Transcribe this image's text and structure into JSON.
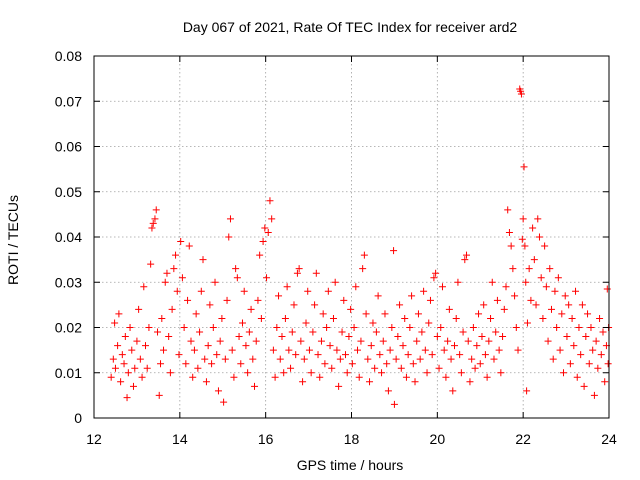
{
  "chart_data": {
    "type": "scatter",
    "title": "Day 067 of 2021, Rate Of TEC Index for receiver ard2",
    "xlabel": "GPS time / hours",
    "ylabel": "ROTI / TECUs",
    "xlim": [
      12,
      24
    ],
    "ylim": [
      0,
      0.08
    ],
    "x_ticks": [
      12,
      14,
      16,
      18,
      20,
      22,
      24
    ],
    "x_tick_labels": [
      "12",
      "14",
      "16",
      "18",
      "20",
      "22",
      "24"
    ],
    "y_ticks": [
      0,
      0.01,
      0.02,
      0.03,
      0.04,
      0.05,
      0.06,
      0.07,
      0.08
    ],
    "y_tick_labels": [
      "0",
      "0.01",
      "0.02",
      "0.03",
      "0.04",
      "0.05",
      "0.06",
      "0.07",
      "0.08"
    ],
    "grid": true,
    "marker": "+",
    "marker_color": "#ff0000",
    "series": [
      {
        "name": "ROTI",
        "points": [
          [
            12.4,
            0.009
          ],
          [
            12.45,
            0.013
          ],
          [
            12.48,
            0.021
          ],
          [
            12.5,
            0.011
          ],
          [
            12.55,
            0.016
          ],
          [
            12.58,
            0.023
          ],
          [
            12.62,
            0.008
          ],
          [
            12.66,
            0.014
          ],
          [
            12.7,
            0.012
          ],
          [
            12.73,
            0.018
          ],
          [
            12.77,
            0.0045
          ],
          [
            12.8,
            0.01
          ],
          [
            12.84,
            0.02
          ],
          [
            12.88,
            0.015
          ],
          [
            12.92,
            0.007
          ],
          [
            12.95,
            0.011
          ],
          [
            13.0,
            0.017
          ],
          [
            13.04,
            0.024
          ],
          [
            13.08,
            0.013
          ],
          [
            13.12,
            0.009
          ],
          [
            13.16,
            0.029
          ],
          [
            13.2,
            0.016
          ],
          [
            13.24,
            0.011
          ],
          [
            13.28,
            0.02
          ],
          [
            13.32,
            0.034
          ],
          [
            13.35,
            0.042
          ],
          [
            13.38,
            0.043
          ],
          [
            13.42,
            0.044
          ],
          [
            13.45,
            0.046
          ],
          [
            13.48,
            0.019
          ],
          [
            13.52,
            0.005
          ],
          [
            13.55,
            0.012
          ],
          [
            13.58,
            0.022
          ],
          [
            13.62,
            0.015
          ],
          [
            13.66,
            0.03
          ],
          [
            13.7,
            0.032
          ],
          [
            13.74,
            0.018
          ],
          [
            13.78,
            0.01
          ],
          [
            13.82,
            0.024
          ],
          [
            13.86,
            0.033
          ],
          [
            13.9,
            0.036
          ],
          [
            13.94,
            0.028
          ],
          [
            13.98,
            0.014
          ],
          [
            14.02,
            0.039
          ],
          [
            14.06,
            0.031
          ],
          [
            14.1,
            0.02
          ],
          [
            14.14,
            0.012
          ],
          [
            14.18,
            0.026
          ],
          [
            14.22,
            0.038
          ],
          [
            14.26,
            0.017
          ],
          [
            14.3,
            0.009
          ],
          [
            14.34,
            0.015
          ],
          [
            14.38,
            0.023
          ],
          [
            14.42,
            0.011
          ],
          [
            14.46,
            0.019
          ],
          [
            14.5,
            0.028
          ],
          [
            14.54,
            0.035
          ],
          [
            14.58,
            0.013
          ],
          [
            14.62,
            0.008
          ],
          [
            14.66,
            0.016
          ],
          [
            14.7,
            0.025
          ],
          [
            14.74,
            0.012
          ],
          [
            14.78,
            0.02
          ],
          [
            14.82,
            0.03
          ],
          [
            14.86,
            0.014
          ],
          [
            14.9,
            0.006
          ],
          [
            14.94,
            0.017
          ],
          [
            14.98,
            0.022
          ],
          [
            15.02,
            0.0035
          ],
          [
            15.06,
            0.013
          ],
          [
            15.1,
            0.026
          ],
          [
            15.14,
            0.04
          ],
          [
            15.18,
            0.044
          ],
          [
            15.22,
            0.015
          ],
          [
            15.26,
            0.009
          ],
          [
            15.3,
            0.033
          ],
          [
            15.34,
            0.031
          ],
          [
            15.38,
            0.018
          ],
          [
            15.42,
            0.012
          ],
          [
            15.46,
            0.021
          ],
          [
            15.5,
            0.028
          ],
          [
            15.54,
            0.016
          ],
          [
            15.58,
            0.01
          ],
          [
            15.62,
            0.019
          ],
          [
            15.66,
            0.024
          ],
          [
            15.7,
            0.013
          ],
          [
            15.74,
            0.007
          ],
          [
            15.78,
            0.017
          ],
          [
            15.82,
            0.026
          ],
          [
            15.86,
            0.036
          ],
          [
            15.9,
            0.022
          ],
          [
            15.94,
            0.039
          ],
          [
            15.98,
            0.042
          ],
          [
            16.02,
            0.031
          ],
          [
            16.06,
            0.041
          ],
          [
            16.1,
            0.048
          ],
          [
            16.14,
            0.044
          ],
          [
            16.18,
            0.015
          ],
          [
            16.22,
            0.009
          ],
          [
            16.26,
            0.02
          ],
          [
            16.3,
            0.027
          ],
          [
            16.34,
            0.013
          ],
          [
            16.38,
            0.018
          ],
          [
            16.42,
            0.01
          ],
          [
            16.46,
            0.022
          ],
          [
            16.5,
            0.029
          ],
          [
            16.54,
            0.015
          ],
          [
            16.58,
            0.011
          ],
          [
            16.62,
            0.019
          ],
          [
            16.66,
            0.025
          ],
          [
            16.7,
            0.014
          ],
          [
            16.74,
            0.032
          ],
          [
            16.78,
            0.033
          ],
          [
            16.82,
            0.017
          ],
          [
            16.86,
            0.008
          ],
          [
            16.9,
            0.013
          ],
          [
            16.94,
            0.021
          ],
          [
            16.98,
            0.028
          ],
          [
            17.02,
            0.015
          ],
          [
            17.06,
            0.01
          ],
          [
            17.1,
            0.019
          ],
          [
            17.14,
            0.025
          ],
          [
            17.18,
            0.032
          ],
          [
            17.22,
            0.014
          ],
          [
            17.26,
            0.009
          ],
          [
            17.3,
            0.017
          ],
          [
            17.34,
            0.023
          ],
          [
            17.38,
            0.012
          ],
          [
            17.42,
            0.02
          ],
          [
            17.46,
            0.028
          ],
          [
            17.5,
            0.016
          ],
          [
            17.54,
            0.011
          ],
          [
            17.58,
            0.022
          ],
          [
            17.62,
            0.03
          ],
          [
            17.66,
            0.015
          ],
          [
            17.7,
            0.007
          ],
          [
            17.74,
            0.013
          ],
          [
            17.78,
            0.019
          ],
          [
            17.82,
            0.026
          ],
          [
            17.86,
            0.014
          ],
          [
            17.9,
            0.01
          ],
          [
            17.94,
            0.018
          ],
          [
            17.98,
            0.024
          ],
          [
            18.02,
            0.012
          ],
          [
            18.06,
            0.02
          ],
          [
            18.1,
            0.029
          ],
          [
            18.14,
            0.015
          ],
          [
            18.18,
            0.009
          ],
          [
            18.22,
            0.017
          ],
          [
            18.26,
            0.033
          ],
          [
            18.3,
            0.036
          ],
          [
            18.34,
            0.023
          ],
          [
            18.38,
            0.013
          ],
          [
            18.42,
            0.008
          ],
          [
            18.46,
            0.016
          ],
          [
            18.5,
            0.021
          ],
          [
            18.54,
            0.011
          ],
          [
            18.58,
            0.019
          ],
          [
            18.62,
            0.027
          ],
          [
            18.66,
            0.014
          ],
          [
            18.7,
            0.01
          ],
          [
            18.74,
            0.017
          ],
          [
            18.78,
            0.023
          ],
          [
            18.82,
            0.012
          ],
          [
            18.86,
            0.006
          ],
          [
            18.9,
            0.015
          ],
          [
            18.94,
            0.02
          ],
          [
            18.98,
            0.037
          ],
          [
            19.0,
            0.003
          ],
          [
            19.04,
            0.013
          ],
          [
            19.08,
            0.018
          ],
          [
            19.12,
            0.025
          ],
          [
            19.16,
            0.011
          ],
          [
            19.2,
            0.016
          ],
          [
            19.24,
            0.022
          ],
          [
            19.28,
            0.009
          ],
          [
            19.32,
            0.014
          ],
          [
            19.36,
            0.02
          ],
          [
            19.4,
            0.027
          ],
          [
            19.44,
            0.012
          ],
          [
            19.48,
            0.008
          ],
          [
            19.52,
            0.017
          ],
          [
            19.56,
            0.023
          ],
          [
            19.6,
            0.013
          ],
          [
            19.64,
            0.019
          ],
          [
            19.68,
            0.028
          ],
          [
            19.72,
            0.015
          ],
          [
            19.76,
            0.01
          ],
          [
            19.8,
            0.021
          ],
          [
            19.84,
            0.026
          ],
          [
            19.88,
            0.014
          ],
          [
            19.92,
            0.031
          ],
          [
            19.96,
            0.032
          ],
          [
            20.0,
            0.018
          ],
          [
            20.04,
            0.011
          ],
          [
            20.08,
            0.02
          ],
          [
            20.12,
            0.029
          ],
          [
            20.16,
            0.015
          ],
          [
            20.2,
            0.009
          ],
          [
            20.24,
            0.017
          ],
          [
            20.28,
            0.024
          ],
          [
            20.32,
            0.013
          ],
          [
            20.36,
            0.006
          ],
          [
            20.4,
            0.016
          ],
          [
            20.44,
            0.022
          ],
          [
            20.48,
            0.03
          ],
          [
            20.52,
            0.014
          ],
          [
            20.56,
            0.01
          ],
          [
            20.6,
            0.019
          ],
          [
            20.64,
            0.035
          ],
          [
            20.68,
            0.036
          ],
          [
            20.72,
            0.017
          ],
          [
            20.76,
            0.008
          ],
          [
            20.8,
            0.013
          ],
          [
            20.84,
            0.02
          ],
          [
            20.88,
            0.011
          ],
          [
            20.92,
            0.016
          ],
          [
            20.96,
            0.023
          ],
          [
            21.0,
            0.012
          ],
          [
            21.04,
            0.018
          ],
          [
            21.08,
            0.025
          ],
          [
            21.12,
            0.014
          ],
          [
            21.16,
            0.009
          ],
          [
            21.2,
            0.017
          ],
          [
            21.24,
            0.022
          ],
          [
            21.28,
            0.03
          ],
          [
            21.32,
            0.013
          ],
          [
            21.36,
            0.019
          ],
          [
            21.4,
            0.026
          ],
          [
            21.44,
            0.015
          ],
          [
            21.48,
            0.01
          ],
          [
            21.52,
            0.018
          ],
          [
            21.56,
            0.024
          ],
          [
            21.6,
            0.029
          ],
          [
            21.64,
            0.046
          ],
          [
            21.68,
            0.041
          ],
          [
            21.72,
            0.038
          ],
          [
            21.76,
            0.033
          ],
          [
            21.8,
            0.027
          ],
          [
            21.84,
            0.02
          ],
          [
            21.88,
            0.015
          ],
          [
            21.92,
            0.0727
          ],
          [
            21.94,
            0.0722
          ],
          [
            21.96,
            0.0716
          ],
          [
            21.98,
            0.0395
          ],
          [
            22.0,
            0.044
          ],
          [
            22.02,
            0.0555
          ],
          [
            22.04,
            0.038
          ],
          [
            22.06,
            0.03
          ],
          [
            22.08,
            0.006
          ],
          [
            22.1,
            0.021
          ],
          [
            22.14,
            0.033
          ],
          [
            22.18,
            0.026
          ],
          [
            22.22,
            0.042
          ],
          [
            22.26,
            0.035
          ],
          [
            22.3,
            0.025
          ],
          [
            22.34,
            0.044
          ],
          [
            22.38,
            0.04
          ],
          [
            22.42,
            0.031
          ],
          [
            22.46,
            0.022
          ],
          [
            22.5,
            0.038
          ],
          [
            22.54,
            0.029
          ],
          [
            22.58,
            0.017
          ],
          [
            22.62,
            0.033
          ],
          [
            22.66,
            0.024
          ],
          [
            22.7,
            0.013
          ],
          [
            22.74,
            0.028
          ],
          [
            22.78,
            0.02
          ],
          [
            22.82,
            0.031
          ],
          [
            22.86,
            0.015
          ],
          [
            22.9,
            0.023
          ],
          [
            22.94,
            0.01
          ],
          [
            22.98,
            0.027
          ],
          [
            23.02,
            0.018
          ],
          [
            23.06,
            0.025
          ],
          [
            23.1,
            0.012
          ],
          [
            23.14,
            0.022
          ],
          [
            23.18,
            0.016
          ],
          [
            23.22,
            0.028
          ],
          [
            23.26,
            0.009
          ],
          [
            23.3,
            0.02
          ],
          [
            23.34,
            0.014
          ],
          [
            23.38,
            0.025
          ],
          [
            23.42,
            0.007
          ],
          [
            23.46,
            0.018
          ],
          [
            23.5,
            0.023
          ],
          [
            23.54,
            0.012
          ],
          [
            23.58,
            0.02
          ],
          [
            23.62,
            0.015
          ],
          [
            23.66,
            0.005
          ],
          [
            23.7,
            0.017
          ],
          [
            23.74,
            0.011
          ],
          [
            23.78,
            0.022
          ],
          [
            23.82,
            0.014
          ],
          [
            23.86,
            0.019
          ],
          [
            23.9,
            0.008
          ],
          [
            23.94,
            0.016
          ],
          [
            23.96,
            0.0285
          ],
          [
            23.98,
            0.012
          ],
          [
            23.99,
            0.02
          ]
        ]
      }
    ]
  }
}
